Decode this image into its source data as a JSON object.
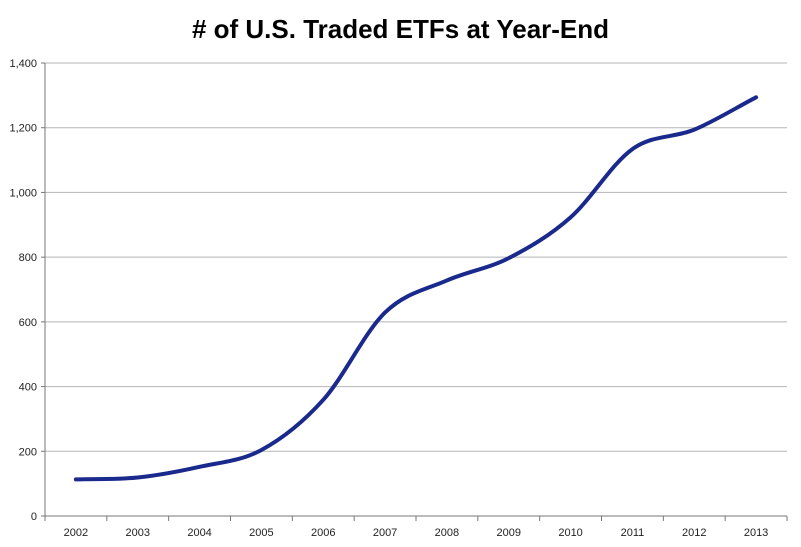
{
  "chart_data": {
    "type": "line",
    "title": "# of U.S. Traded ETFs at Year-End",
    "xlabel": "",
    "ylabel": "",
    "categories": [
      "2002",
      "2003",
      "2004",
      "2005",
      "2006",
      "2007",
      "2008",
      "2009",
      "2010",
      "2011",
      "2012",
      "2013"
    ],
    "series": [
      {
        "values": [
          113,
          119,
          152,
          204,
          359,
          629,
          728,
          797,
          923,
          1134,
          1194,
          1294
        ]
      }
    ],
    "y_ticks": [
      "0",
      "200",
      "400",
      "600",
      "800",
      "1,000",
      "1,200",
      "1,400"
    ],
    "ylim": [
      0,
      1400
    ],
    "grid": "horizontal",
    "legend": "none",
    "colors": {
      "line": "#1a2a8c",
      "grid": "#b5b5b5",
      "axis": "#777777"
    }
  }
}
